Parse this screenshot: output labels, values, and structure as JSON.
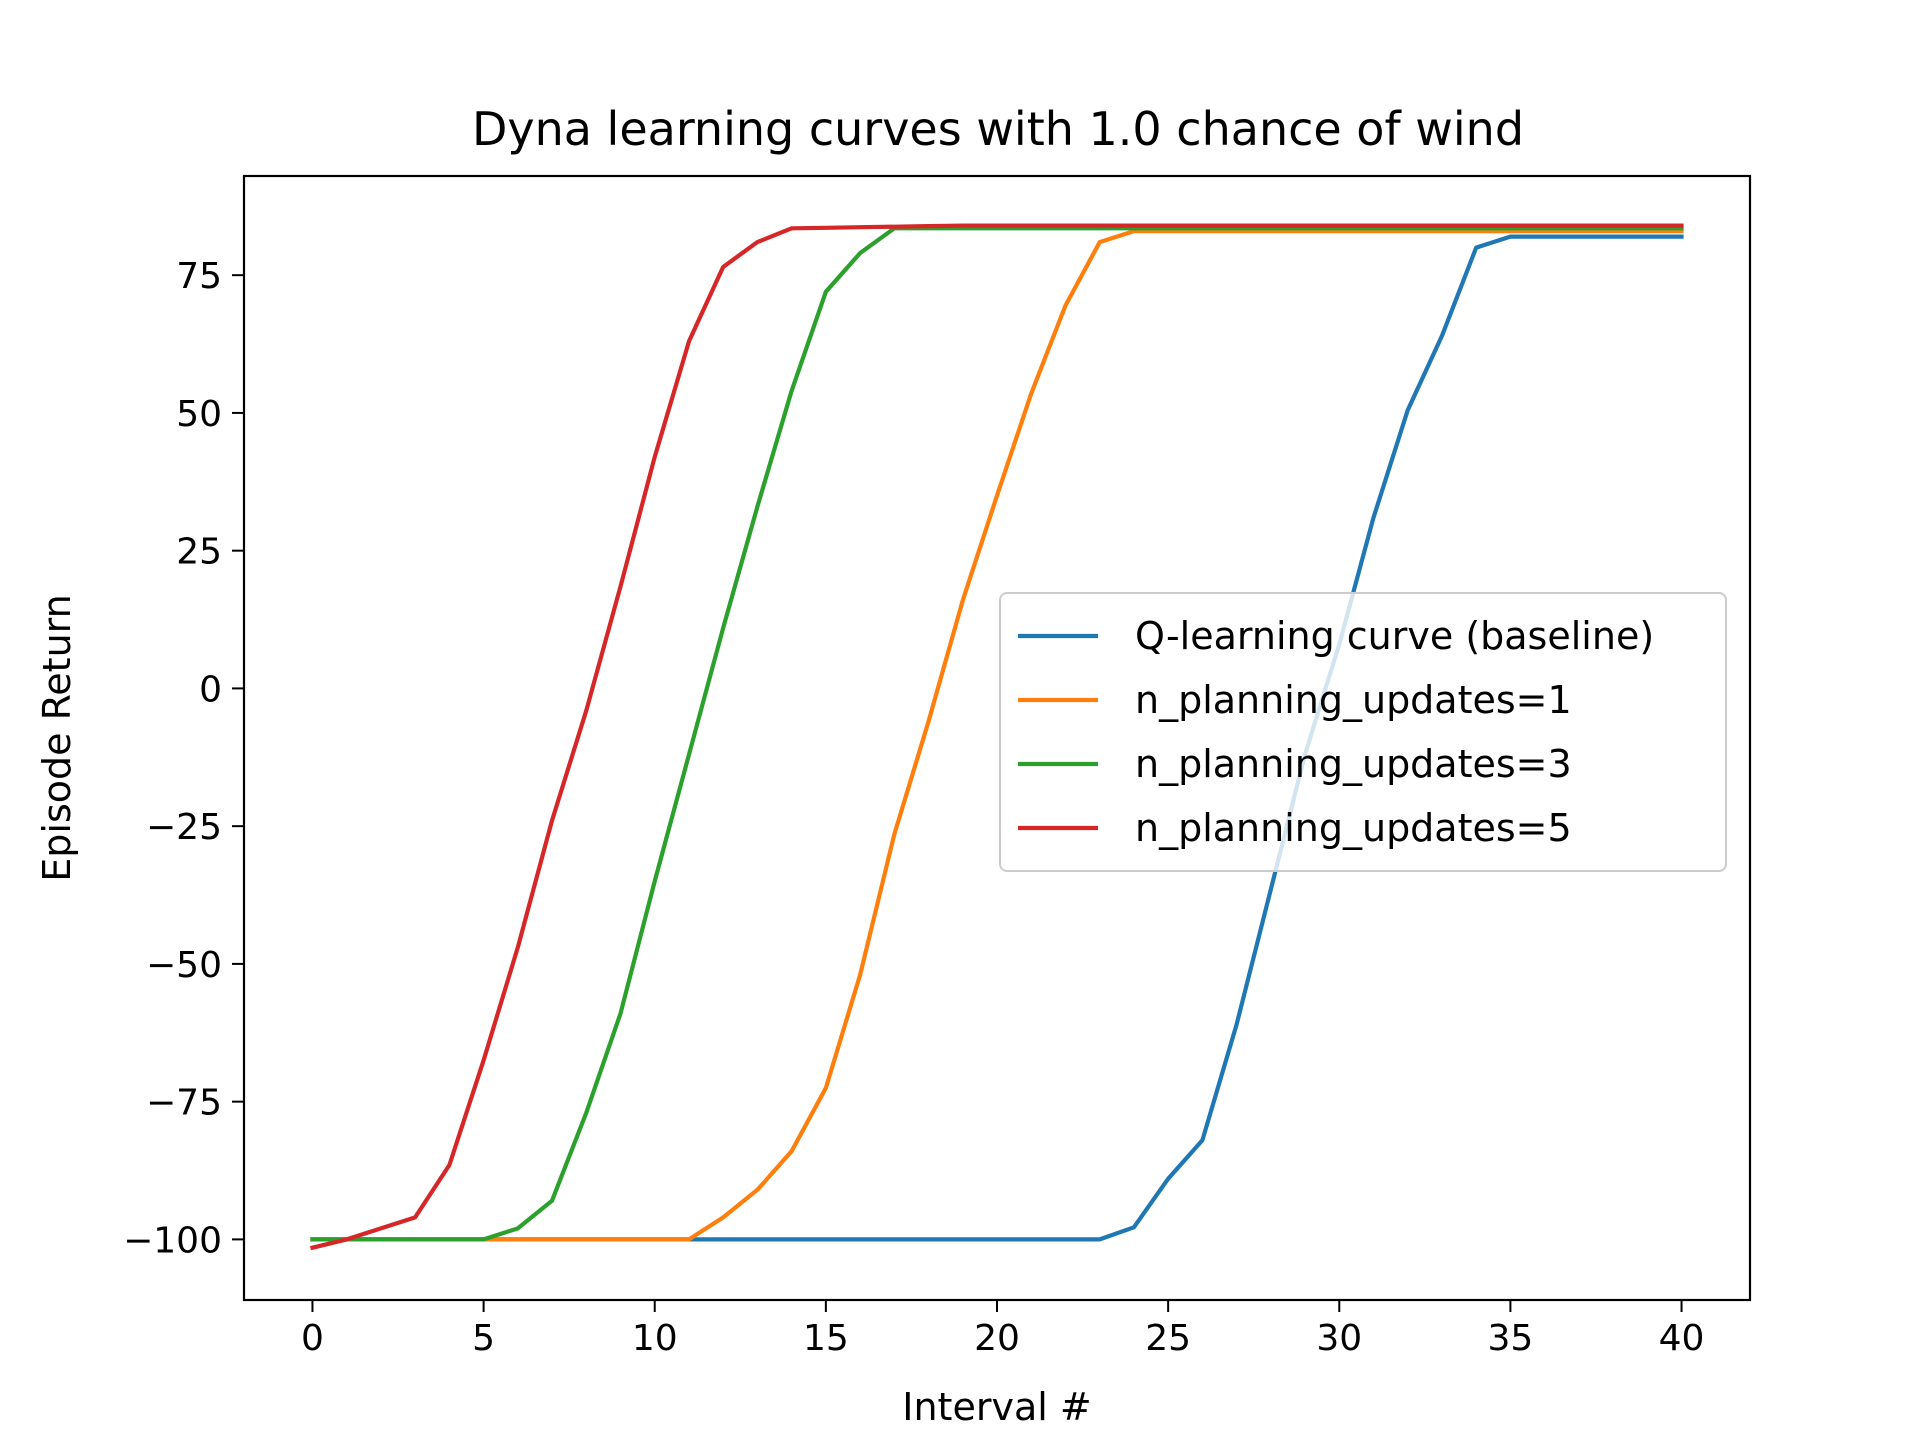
{
  "chart_data": {
    "type": "line",
    "title": "Dyna learning curves with 1.0 chance of wind",
    "xlabel": "Interval #",
    "ylabel": "Episode Return",
    "xlim": [
      -2,
      42
    ],
    "ylim": [
      -111,
      93
    ],
    "xticks": [
      0,
      5,
      10,
      15,
      20,
      25,
      30,
      35,
      40
    ],
    "yticks": [
      -100,
      -75,
      -50,
      -25,
      0,
      25,
      50,
      75
    ],
    "ytick_labels": [
      "−100",
      "−75",
      "−50",
      "−25",
      "0",
      "25",
      "50",
      "75"
    ],
    "grid": false,
    "legend_position": "center-right",
    "x": [
      0,
      1,
      2,
      3,
      4,
      5,
      6,
      7,
      8,
      9,
      10,
      11,
      12,
      13,
      14,
      15,
      16,
      17,
      18,
      19,
      20,
      21,
      22,
      23,
      24,
      25,
      26,
      27,
      28,
      29,
      30,
      31,
      32,
      33,
      34,
      35,
      36,
      37,
      38,
      39,
      40
    ],
    "series": [
      {
        "name": "Q-learning curve (baseline)",
        "color": "#1f77b4",
        "values": [
          -100,
          -100,
          -100,
          -100,
          -100,
          -100,
          -100,
          -100,
          -100,
          -100,
          -100,
          -100,
          -100,
          -100,
          -100,
          -100,
          -100,
          -100,
          -100,
          -100,
          -100,
          -100,
          -100,
          -100,
          -97.8,
          -89,
          -82,
          -61,
          -36.5,
          -12,
          8,
          31,
          50.5,
          64,
          80,
          82,
          82,
          82,
          82,
          82,
          82
        ]
      },
      {
        "name": "n_planning_updates=1",
        "color": "#ff7f0e",
        "values": [
          -100,
          -100,
          -100,
          -100,
          -100,
          -100,
          -100,
          -100,
          -100,
          -100,
          -100,
          -100,
          -96,
          -91,
          -84,
          -72.5,
          -52,
          -26.5,
          -6,
          16,
          35,
          53.5,
          69.5,
          81,
          83,
          83,
          83,
          83,
          83,
          83,
          83,
          83,
          83,
          83,
          83,
          83,
          83,
          83,
          83,
          83,
          83
        ]
      },
      {
        "name": "n_planning_updates=3",
        "color": "#2ca02c",
        "values": [
          -100,
          -100,
          -100,
          -100,
          -100,
          -100,
          -98,
          -93,
          -77,
          -59,
          -35,
          -12,
          11,
          33,
          54,
          72,
          79,
          83.5,
          83.5,
          83.5,
          83.5,
          83.5,
          83.5,
          83.5,
          83.5,
          83.5,
          83.5,
          83.5,
          83.5,
          83.5,
          83.5,
          83.5,
          83.5,
          83.5,
          83.5,
          83.5,
          83.5,
          83.5,
          83.5,
          83.5,
          83.5
        ]
      },
      {
        "name": "n_planning_updates=5",
        "color": "#d62728",
        "values": [
          -101.5,
          -100,
          -98,
          -96,
          -86.5,
          -67.5,
          -47,
          -24,
          -4,
          18.5,
          42,
          63,
          76.5,
          81,
          83.5,
          83.6,
          83.7,
          83.8,
          83.9,
          84,
          84,
          84,
          84,
          84,
          84,
          84,
          84,
          84,
          84,
          84,
          84,
          84,
          84,
          84,
          84,
          84,
          84,
          84,
          84,
          84,
          84
        ]
      }
    ]
  }
}
